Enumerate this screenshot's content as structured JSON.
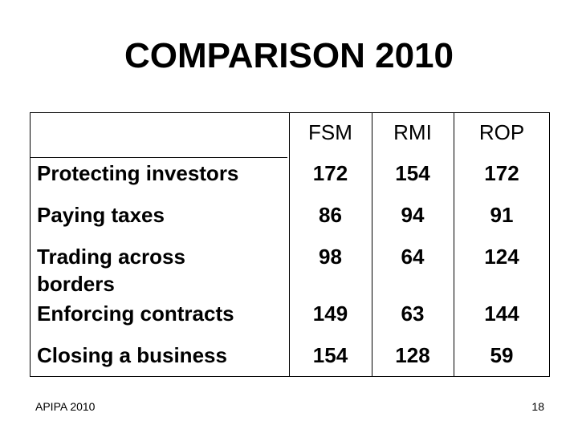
{
  "slide": {
    "title": "COMPARISON 2010",
    "footer_left": "APIPA 2010",
    "page_number": "18"
  },
  "table": {
    "columns": [
      "FSM",
      "RMI",
      "ROP"
    ],
    "rows": [
      {
        "label": "Protecting investors",
        "values": [
          "172",
          "154",
          "172"
        ]
      },
      {
        "label": "Paying taxes",
        "values": [
          "86",
          "94",
          "91"
        ]
      },
      {
        "label": "Trading across borders",
        "values": [
          "98",
          "64",
          "124"
        ]
      },
      {
        "label": "Enforcing contracts",
        "values": [
          "149",
          "63",
          "144"
        ]
      },
      {
        "label": "Closing a business",
        "values": [
          "154",
          "128",
          "59"
        ]
      }
    ]
  }
}
